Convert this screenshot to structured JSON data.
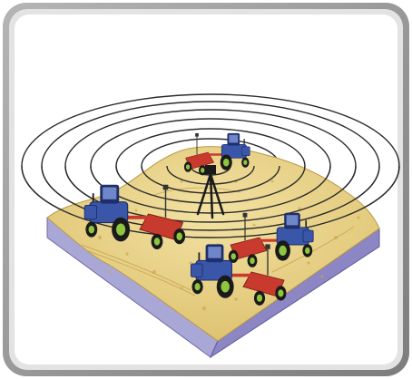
{
  "illustration": {
    "tractor_count": 4,
    "signal_ring_count": 8,
    "colors": {
      "frame_outer": "#8a8a8a",
      "frame_inner": "#dcdcdc",
      "background": "#ffffff",
      "ground_surface": "#e9d58f",
      "ground_speckle": "#c9a94e",
      "block_side_left": "#a9a7d6",
      "block_side_right": "#8c86c4",
      "signal_rings": "#2b2b2b",
      "tractor_body": "#3a56a8",
      "tractor_dark": "#1e2f6b",
      "implement_red": "#c93a2e",
      "wheel_hub": "#8ec63f",
      "tripod": "#1a1a1a"
    }
  }
}
